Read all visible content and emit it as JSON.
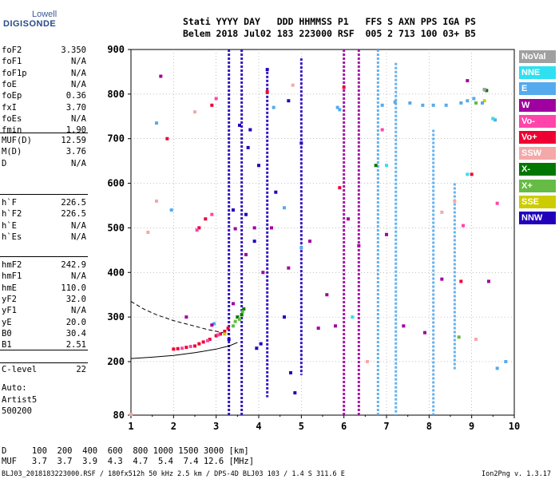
{
  "logo": {
    "line1": "Lowell",
    "line2": "DIGISONDE"
  },
  "header": {
    "row1": "Stati YYYY DAY   DDD HHMMSS P1   FFS S AXN PPS IGA PS",
    "row2": "Belem 2018 Jul02 183 223000 RSF  005 2 713 100 03+ B5"
  },
  "params_group1": [
    {
      "name": "foF2",
      "value": "3.350"
    },
    {
      "name": "foF1",
      "value": "N/A"
    },
    {
      "name": "foF1p",
      "value": "N/A"
    },
    {
      "name": "foE",
      "value": "N/A"
    },
    {
      "name": "foEp",
      "value": "0.36"
    },
    {
      "name": "fxI",
      "value": "3.70"
    },
    {
      "name": "foEs",
      "value": "N/A"
    },
    {
      "name": "fmin",
      "value": "1.90"
    }
  ],
  "params_group2": [
    {
      "name": "MUF(D)",
      "value": "12.59"
    },
    {
      "name": "M(D)",
      "value": "3.76"
    },
    {
      "name": "D",
      "value": "N/A"
    }
  ],
  "params_group3": [
    {
      "name": "h`F",
      "value": "226.5"
    },
    {
      "name": "h`F2",
      "value": "226.5"
    },
    {
      "name": "h`E",
      "value": "N/A"
    },
    {
      "name": "h`Es",
      "value": "N/A"
    }
  ],
  "params_group4": [
    {
      "name": "hmF2",
      "value": "242.9"
    },
    {
      "name": "hmF1",
      "value": "N/A"
    },
    {
      "name": "hmE",
      "value": "110.0"
    },
    {
      "name": "yF2",
      "value": "32.0"
    },
    {
      "name": "yF1",
      "value": "N/A"
    },
    {
      "name": "yE",
      "value": "20.0"
    },
    {
      "name": "B0",
      "value": "30.4"
    },
    {
      "name": "B1",
      "value": "2.51"
    }
  ],
  "clevel": {
    "name": "C-level",
    "value": "22"
  },
  "auto": [
    "Auto:",
    "Artist5",
    "500200"
  ],
  "dmuf": {
    "d_row": "D     100  200  400  600  800 1000 1500 3000 [km]",
    "muf_row": "MUF   3.7  3.7  3.9  4.3  4.7  5.4  7.4 12.6 [MHz]"
  },
  "footer": {
    "left": "BLJ03_2018183223000.RSF / 180fx512h 50 kHz 2.5 km / DPS-4D BLJ03 103 / 1.4 S 311.6 E",
    "right": "Ion2Png v. 1.3.17"
  },
  "legend": [
    {
      "label": "NoVal",
      "color": "#a0a0a0"
    },
    {
      "label": "NNE",
      "color": "#2ee0f0"
    },
    {
      "label": "E",
      "color": "#55aaee"
    },
    {
      "label": "W",
      "color": "#a000a0"
    },
    {
      "label": "Vo-",
      "color": "#ff44aa"
    },
    {
      "label": "Vo+",
      "color": "#ee0033"
    },
    {
      "label": "SSW",
      "color": "#f4a8a8"
    },
    {
      "label": "X-",
      "color": "#007700"
    },
    {
      "label": "X+",
      "color": "#66bb44"
    },
    {
      "label": "SSE",
      "color": "#cccc00"
    },
    {
      "label": "NNW",
      "color": "#2200bb"
    }
  ],
  "chart_data": {
    "type": "scatter",
    "xlabel": "",
    "ylabel": "",
    "xlim": [
      1,
      10
    ],
    "ylim": [
      80,
      900
    ],
    "x_ticks": [
      "1",
      "2",
      "3",
      "4",
      "5",
      "6",
      "7",
      "8",
      "9",
      "10"
    ],
    "y_ticks": [
      "80",
      "200",
      "300",
      "400",
      "500",
      "600",
      "700",
      "800",
      "900"
    ],
    "grid": true,
    "series": [
      {
        "name": "Vo+",
        "points": [
          [
            2.0,
            228
          ],
          [
            2.1,
            229
          ],
          [
            2.3,
            232
          ],
          [
            2.5,
            235
          ],
          [
            2.6,
            240
          ],
          [
            2.7,
            244
          ],
          [
            2.85,
            250
          ],
          [
            3.0,
            258
          ],
          [
            3.1,
            262
          ],
          [
            3.2,
            268
          ],
          [
            3.28,
            275
          ],
          [
            2.6,
            500
          ],
          [
            2.75,
            520
          ],
          [
            1.85,
            700
          ],
          [
            2.9,
            775
          ],
          [
            4.2,
            805
          ],
          [
            5.9,
            590
          ],
          [
            6.0,
            815
          ],
          [
            8.75,
            380
          ],
          [
            9.0,
            620
          ]
        ]
      },
      {
        "name": "Vo-",
        "points": [
          [
            2.2,
            230
          ],
          [
            2.4,
            234
          ],
          [
            2.8,
            247
          ],
          [
            3.05,
            260
          ],
          [
            2.55,
            495
          ],
          [
            2.9,
            530
          ],
          [
            3.0,
            790
          ],
          [
            6.9,
            720
          ],
          [
            8.8,
            505
          ],
          [
            9.6,
            555
          ]
        ]
      },
      {
        "name": "SSW",
        "points": [
          [
            1.0,
            82
          ],
          [
            1.4,
            490
          ],
          [
            1.6,
            560
          ],
          [
            2.5,
            760
          ],
          [
            4.8,
            820
          ],
          [
            6.55,
            200
          ],
          [
            8.3,
            535
          ],
          [
            8.6,
            560
          ],
          [
            9.1,
            250
          ]
        ]
      },
      {
        "name": "X-",
        "points": [
          [
            3.5,
            300
          ],
          [
            3.6,
            305
          ],
          [
            3.65,
            318
          ],
          [
            6.75,
            640
          ],
          [
            9.3,
            810
          ],
          [
            9.35,
            808
          ]
        ]
      },
      {
        "name": "X+",
        "points": [
          [
            3.4,
            280
          ],
          [
            3.45,
            290
          ],
          [
            3.55,
            295
          ],
          [
            3.62,
            312
          ],
          [
            8.7,
            255
          ],
          [
            9.1,
            780
          ]
        ]
      },
      {
        "name": "SSE",
        "points": [
          [
            3.2,
            262
          ],
          [
            9.3,
            785
          ],
          [
            9.5,
            745
          ]
        ]
      },
      {
        "name": "E",
        "points": [
          [
            1.6,
            735
          ],
          [
            1.95,
            540
          ],
          [
            2.95,
            285
          ],
          [
            4.35,
            770
          ],
          [
            4.6,
            545
          ],
          [
            5.0,
            455
          ],
          [
            5.85,
            770
          ],
          [
            5.9,
            765
          ],
          [
            6.9,
            775
          ],
          [
            7.2,
            782
          ],
          [
            7.55,
            780
          ],
          [
            7.85,
            775
          ],
          [
            8.1,
            775
          ],
          [
            8.4,
            775
          ],
          [
            8.75,
            780
          ],
          [
            8.9,
            785
          ],
          [
            9.05,
            790
          ],
          [
            9.25,
            780
          ],
          [
            9.55,
            742
          ],
          [
            9.6,
            185
          ],
          [
            9.8,
            200
          ]
        ]
      },
      {
        "name": "NNE",
        "points": [
          [
            6.2,
            300
          ],
          [
            7.0,
            640
          ],
          [
            8.9,
            620
          ],
          [
            9.5,
            745
          ]
        ]
      },
      {
        "name": "W",
        "points": [
          [
            1.7,
            840
          ],
          [
            2.3,
            300
          ],
          [
            2.9,
            282
          ],
          [
            3.4,
            330
          ],
          [
            3.45,
            498
          ],
          [
            3.7,
            440
          ],
          [
            3.9,
            500
          ],
          [
            4.1,
            400
          ],
          [
            4.3,
            500
          ],
          [
            4.7,
            410
          ],
          [
            5.2,
            470
          ],
          [
            5.4,
            275
          ],
          [
            5.6,
            350
          ],
          [
            5.8,
            280
          ],
          [
            6.1,
            520
          ],
          [
            6.35,
            460
          ],
          [
            7.0,
            485
          ],
          [
            7.4,
            280
          ],
          [
            7.9,
            265
          ],
          [
            8.3,
            385
          ],
          [
            8.9,
            830
          ],
          [
            9.4,
            380
          ]
        ]
      },
      {
        "name": "NNW",
        "points": [
          [
            3.3,
            250
          ],
          [
            3.4,
            540
          ],
          [
            3.55,
            730
          ],
          [
            3.75,
            680
          ],
          [
            3.8,
            720
          ],
          [
            4.0,
            640
          ],
          [
            4.2,
            855
          ],
          [
            4.4,
            580
          ],
          [
            4.6,
            300
          ],
          [
            4.75,
            175
          ],
          [
            4.85,
            130
          ],
          [
            4.05,
            240
          ],
          [
            3.95,
            230
          ],
          [
            4.7,
            785
          ],
          [
            5.0,
            690
          ],
          [
            3.7,
            530
          ],
          [
            3.9,
            470
          ]
        ]
      },
      {
        "name": "NoVal",
        "points": [
          [
            9.3,
            810
          ]
        ]
      }
    ],
    "curves": [
      {
        "name": "solid",
        "points": [
          [
            1.0,
            207
          ],
          [
            1.5,
            210
          ],
          [
            2.0,
            214
          ],
          [
            2.5,
            220
          ],
          [
            3.0,
            228
          ],
          [
            3.3,
            235
          ],
          [
            3.5,
            243
          ]
        ]
      },
      {
        "name": "dashed",
        "points": [
          [
            1.0,
            335
          ],
          [
            1.3,
            318
          ],
          [
            1.6,
            305
          ],
          [
            2.0,
            292
          ],
          [
            2.4,
            282
          ],
          [
            2.8,
            272
          ],
          [
            3.1,
            266
          ],
          [
            3.3,
            262
          ]
        ]
      }
    ],
    "vertical_traces": [
      {
        "x": 3.3,
        "ymin": 80,
        "ymax": 900,
        "series": "NNW"
      },
      {
        "x": 6.0,
        "ymin": 80,
        "ymax": 900,
        "series": "W"
      },
      {
        "x": 6.35,
        "ymin": 80,
        "ymax": 900,
        "series": "W"
      },
      {
        "x": 6.8,
        "ymin": 80,
        "ymax": 900,
        "series": "E"
      },
      {
        "x": 7.22,
        "ymin": 80,
        "ymax": 870,
        "series": "E"
      },
      {
        "x": 8.1,
        "ymin": 80,
        "ymax": 720,
        "series": "E"
      },
      {
        "x": 8.6,
        "ymin": 180,
        "ymax": 600,
        "series": "E"
      },
      {
        "x": 3.6,
        "ymin": 80,
        "ymax": 900,
        "series": "NNW"
      },
      {
        "x": 4.2,
        "ymin": 120,
        "ymax": 850,
        "series": "NNW"
      },
      {
        "x": 5.0,
        "ymin": 170,
        "ymax": 880,
        "series": "NNW"
      }
    ]
  }
}
